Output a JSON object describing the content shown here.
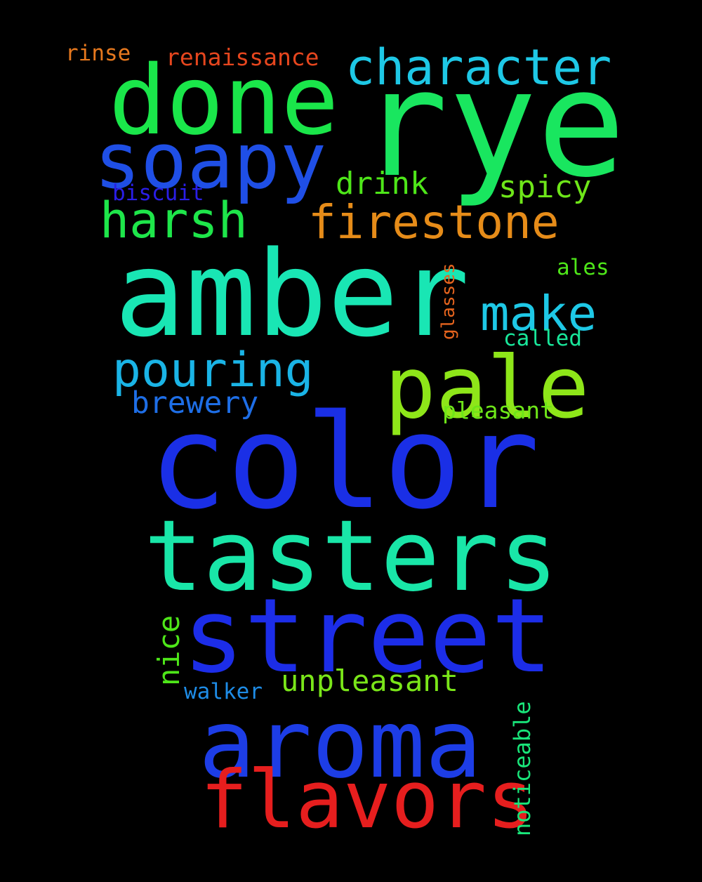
{
  "background": "#000000",
  "words": [
    {
      "id": "amber",
      "text": "amber",
      "color": "#19e6b4"
    },
    {
      "id": "color",
      "text": "color",
      "color": "#1a2fe6"
    },
    {
      "id": "rye",
      "text": "rye",
      "color": "#19e65f"
    },
    {
      "id": "street",
      "text": "street",
      "color": "#1c2de8"
    },
    {
      "id": "tasters",
      "text": "tasters",
      "color": "#19e6a8"
    },
    {
      "id": "aroma",
      "text": "aroma",
      "color": "#1d3de6"
    },
    {
      "id": "done",
      "text": "done",
      "color": "#1ae64a"
    },
    {
      "id": "flavors",
      "text": "flavors",
      "color": "#e61e1e"
    },
    {
      "id": "pale",
      "text": "pale",
      "color": "#8ee619"
    },
    {
      "id": "soapy",
      "text": "soapy",
      "color": "#1f4fe6"
    },
    {
      "id": "character",
      "text": "character",
      "color": "#1ec8e6"
    },
    {
      "id": "firestone",
      "text": "firestone",
      "color": "#e68c19"
    },
    {
      "id": "harsh",
      "text": "harsh",
      "color": "#1ee64a"
    },
    {
      "id": "pouring",
      "text": "pouring",
      "color": "#1ab4e6"
    },
    {
      "id": "make",
      "text": "make",
      "color": "#1ec8e6"
    },
    {
      "id": "unpleasant",
      "text": "unpleasant",
      "color": "#7ae619"
    },
    {
      "id": "brewery",
      "text": "brewery",
      "color": "#1e6ee6"
    },
    {
      "id": "spicy",
      "text": "spicy",
      "color": "#6ee619"
    },
    {
      "id": "drink",
      "text": "drink",
      "color": "#4ee619"
    },
    {
      "id": "nice",
      "text": "nice",
      "color": "#4ee619"
    },
    {
      "id": "noticeable",
      "text": "noticeable",
      "color": "#19e67a"
    },
    {
      "id": "pleasant",
      "text": "pleasant",
      "color": "#6ee619"
    },
    {
      "id": "renaissance",
      "text": "renaissance",
      "color": "#e6461e"
    },
    {
      "id": "walker",
      "text": "walker",
      "color": "#1e8ce6"
    },
    {
      "id": "called",
      "text": "called",
      "color": "#19e69a"
    },
    {
      "id": "biscuit",
      "text": "biscuit",
      "color": "#2a1ee6"
    },
    {
      "id": "rinse",
      "text": "rinse",
      "color": "#e6781e"
    },
    {
      "id": "ales",
      "text": "ales",
      "color": "#4ee619"
    },
    {
      "id": "glasses",
      "text": "glasses",
      "color": "#e6641e"
    }
  ]
}
